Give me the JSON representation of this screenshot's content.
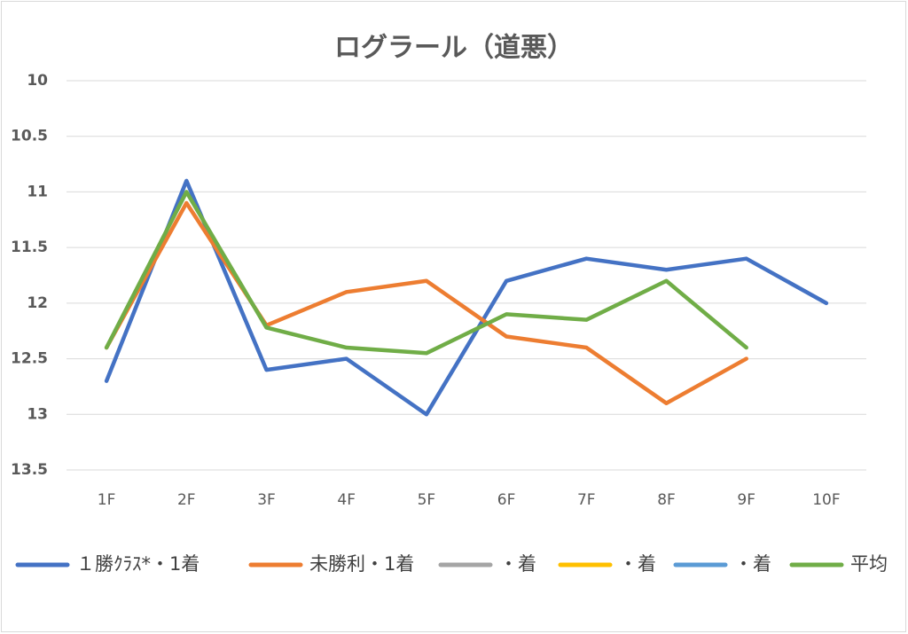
{
  "chart_data": {
    "type": "line",
    "title": "ログラール（道悪）",
    "categories": [
      "1F",
      "2F",
      "3F",
      "4F",
      "5F",
      "6F",
      "7F",
      "8F",
      "9F",
      "10F"
    ],
    "series": [
      {
        "name": "１勝ｸﾗｽ*・1着",
        "color": "#4472c4",
        "values": [
          12.7,
          10.9,
          12.6,
          12.5,
          13.0,
          11.8,
          11.6,
          11.7,
          11.6,
          12.0
        ]
      },
      {
        "name": "未勝利・1着",
        "color": "#ed7d31",
        "values": [
          12.4,
          11.1,
          12.2,
          11.9,
          11.8,
          12.3,
          12.4,
          12.9,
          12.5,
          null
        ]
      },
      {
        "name": "・着",
        "color": "#a5a5a5",
        "values": [
          null,
          null,
          null,
          null,
          null,
          null,
          null,
          null,
          null,
          null
        ]
      },
      {
        "name": "・着",
        "color": "#ffc000",
        "values": [
          null,
          null,
          null,
          null,
          null,
          null,
          null,
          null,
          null,
          null
        ]
      },
      {
        "name": "・着",
        "color": "#5b9bd5",
        "values": [
          null,
          null,
          null,
          null,
          null,
          null,
          null,
          null,
          null,
          null
        ]
      },
      {
        "name": "平均",
        "color": "#70ad47",
        "values": [
          12.4,
          11.0,
          12.22,
          12.4,
          12.45,
          12.1,
          12.15,
          11.8,
          12.4,
          null
        ]
      }
    ],
    "ylim": [
      10,
      13.5
    ],
    "y_inverted": true,
    "yticks": [
      10,
      10.5,
      11,
      11.5,
      12,
      12.5,
      13,
      13.5
    ],
    "grid": true,
    "legend": "bottom"
  }
}
